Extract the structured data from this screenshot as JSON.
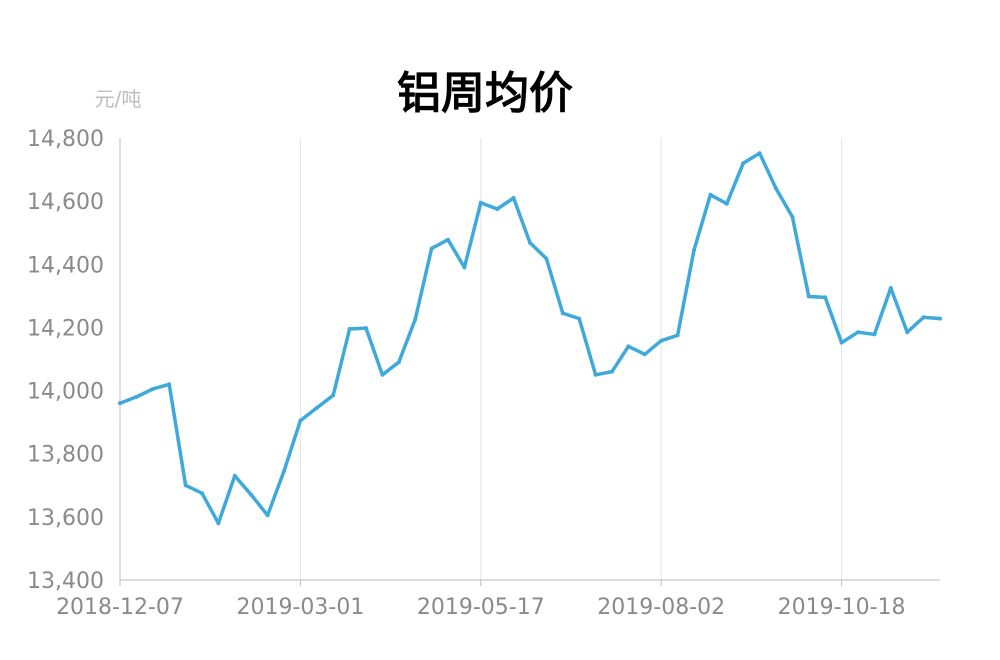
{
  "chart_data": {
    "type": "line",
    "title": "铝周均价",
    "ylabel": "元/吨",
    "xlabel": "",
    "ylim": [
      13400,
      14800
    ],
    "y_ticks": [
      "13,400",
      "13,600",
      "13,800",
      "14,000",
      "14,200",
      "14,400",
      "14,600",
      "14,800"
    ],
    "x_tick_labels": [
      "2018-12-07",
      "2019-03-01",
      "2019-05-17",
      "2019-08-02",
      "2019-10-18"
    ],
    "x_tick_index": [
      0,
      11,
      22,
      33,
      44
    ],
    "grid": "vertical",
    "color": "#3fa9dc",
    "series": [
      {
        "values": [
          13960,
          13980,
          14005,
          14020,
          13700,
          13675,
          13580,
          13730,
          13670,
          13605,
          13745,
          13905,
          13945,
          13985,
          14195,
          14198,
          14050,
          14090,
          14225,
          14450,
          14478,
          14390,
          14595,
          14575,
          14610,
          14468,
          14418,
          14245,
          14228,
          14050,
          14060,
          14140,
          14115,
          14158,
          14175,
          14445,
          14620,
          14592,
          14720,
          14752,
          14640,
          14550,
          14298,
          14295,
          14152,
          14185,
          14178,
          14325,
          14185,
          14232,
          14228
        ]
      }
    ]
  }
}
